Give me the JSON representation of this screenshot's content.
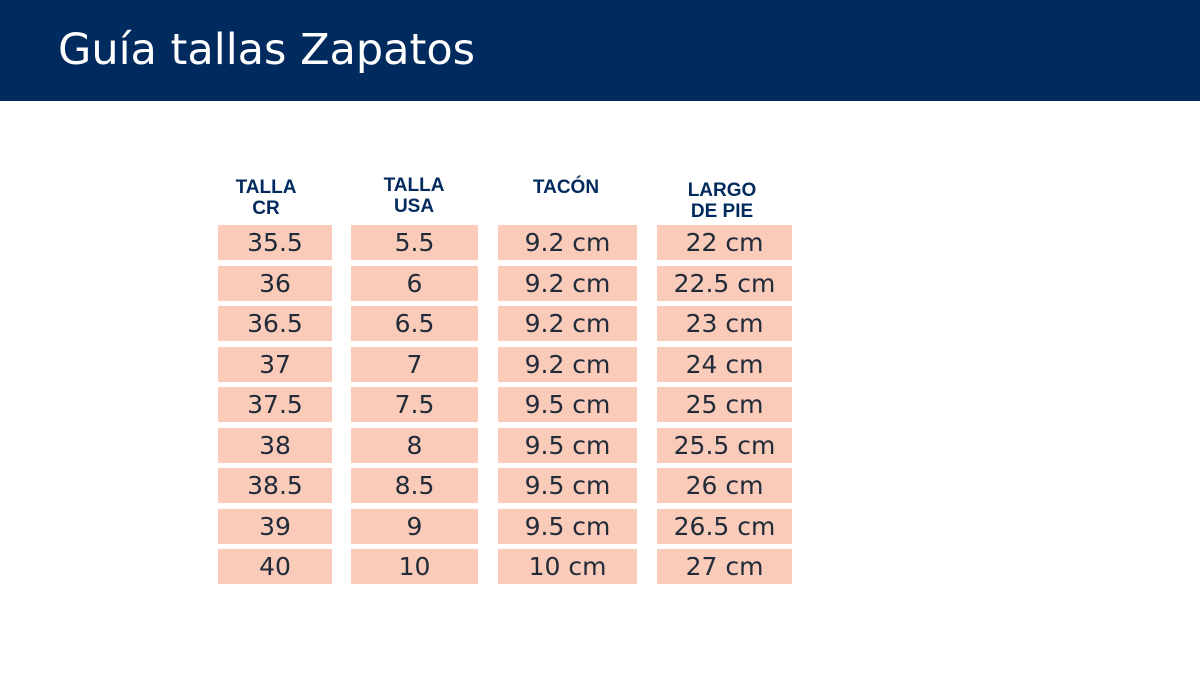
{
  "header": {
    "title": "Guía tallas Zapatos"
  },
  "colors": {
    "header_bg": "#012a5e",
    "header_text": "#ffffff",
    "column_header_text": "#012a5e",
    "cell_bg": "#f9cbb8",
    "cell_text": "#222b3a"
  },
  "table": {
    "columns": [
      {
        "line1": "TALLA",
        "line2": "CR"
      },
      {
        "line1": "TALLA",
        "line2": "USA"
      },
      {
        "line1": "TACÓN",
        "line2": ""
      },
      {
        "line1": "LARGO",
        "line2": "DE PIE"
      }
    ],
    "rows": [
      [
        "35.5",
        "5.5",
        "9.2 cm",
        "22 cm"
      ],
      [
        "36",
        "6",
        "9.2 cm",
        "22.5 cm"
      ],
      [
        "36.5",
        "6.5",
        "9.2 cm",
        "23 cm"
      ],
      [
        "37",
        "7",
        "9.2 cm",
        "24 cm"
      ],
      [
        "37.5",
        "7.5",
        "9.5 cm",
        "25 cm"
      ],
      [
        "38",
        "8",
        "9.5 cm",
        "25.5 cm"
      ],
      [
        "38.5",
        "8.5",
        "9.5 cm",
        "26 cm"
      ],
      [
        "39",
        "9",
        "9.5 cm",
        "26.5 cm"
      ],
      [
        "40",
        "10",
        "10 cm",
        "27 cm"
      ]
    ]
  }
}
